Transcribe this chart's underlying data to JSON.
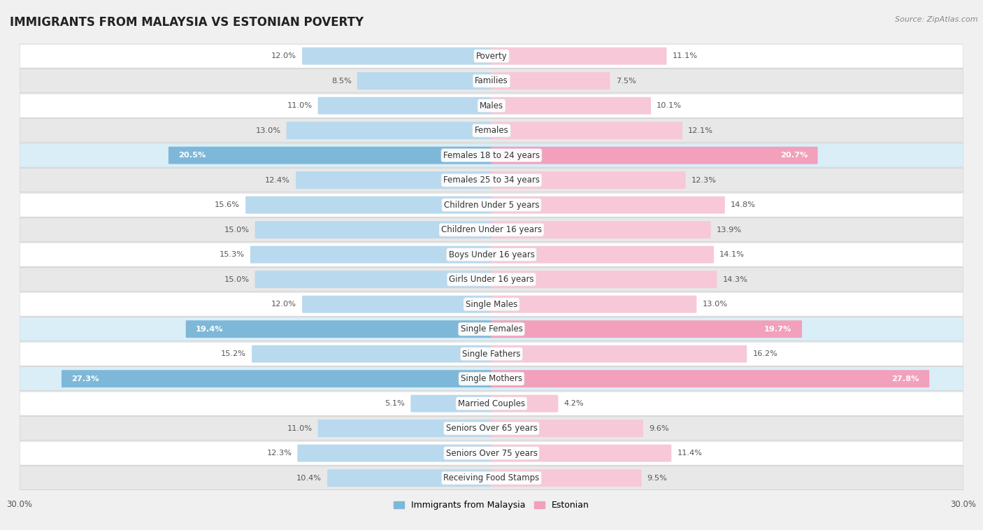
{
  "title": "IMMIGRANTS FROM MALAYSIA VS ESTONIAN POVERTY",
  "source": "Source: ZipAtlas.com",
  "categories": [
    "Poverty",
    "Families",
    "Males",
    "Females",
    "Females 18 to 24 years",
    "Females 25 to 34 years",
    "Children Under 5 years",
    "Children Under 16 years",
    "Boys Under 16 years",
    "Girls Under 16 years",
    "Single Males",
    "Single Females",
    "Single Fathers",
    "Single Mothers",
    "Married Couples",
    "Seniors Over 65 years",
    "Seniors Over 75 years",
    "Receiving Food Stamps"
  ],
  "malaysia_values": [
    12.0,
    8.5,
    11.0,
    13.0,
    20.5,
    12.4,
    15.6,
    15.0,
    15.3,
    15.0,
    12.0,
    19.4,
    15.2,
    27.3,
    5.1,
    11.0,
    12.3,
    10.4
  ],
  "estonian_values": [
    11.1,
    7.5,
    10.1,
    12.1,
    20.7,
    12.3,
    14.8,
    13.9,
    14.1,
    14.3,
    13.0,
    19.7,
    16.2,
    27.8,
    4.2,
    9.6,
    11.4,
    9.5
  ],
  "malaysia_color": "#7eb8d9",
  "estonian_color": "#f2a0bb",
  "malaysia_color_light": "#b8d9ee",
  "estonian_color_light": "#f7c8d8",
  "malaysia_label": "Immigrants from Malaysia",
  "estonian_label": "Estonian",
  "axis_max": 30.0,
  "background_color": "#f0f0f0",
  "row_color_even": "#ffffff",
  "row_color_odd": "#e8e8e8",
  "highlight_row_malaysia": "#d0e8f5",
  "highlight_row_estonian": "#fce0ea",
  "title_fontsize": 12,
  "label_fontsize": 8.5,
  "value_fontsize": 8.2,
  "legend_fontsize": 9,
  "source_fontsize": 8
}
